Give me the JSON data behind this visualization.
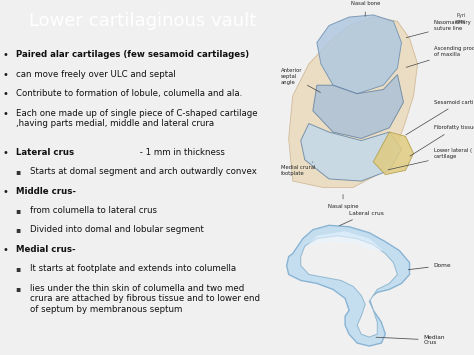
{
  "title": "Lower cartilaginous vault",
  "title_bg_color": "#2aaabf",
  "title_text_color": "#ffffff",
  "bg_color": "#f0f0f0",
  "text_color": "#111111",
  "bullet_items": [
    {
      "level": 0,
      "bold_part": "Paired alar cartilages (few sesamoid cartilages)",
      "normal_part": ""
    },
    {
      "level": 0,
      "bold_part": "",
      "normal_part": "can move freely over ULC and septal"
    },
    {
      "level": 0,
      "bold_part": "",
      "normal_part": "Contribute to formation of lobule, columella and ala."
    },
    {
      "level": 0,
      "bold_part": "",
      "normal_part": "Each one made up of single piece of C-shaped cartilage\n,having parts medial, middle and lateral crura"
    },
    {
      "level": 0,
      "bold_part": "Lateral crus",
      "normal_part": " - 1 mm in thickness"
    },
    {
      "level": 1,
      "bold_part": "",
      "normal_part": "Starts at domal segment and arch outwardly convex"
    },
    {
      "level": 0,
      "bold_part": "Middle crus-",
      "normal_part": ""
    },
    {
      "level": 1,
      "bold_part": "",
      "normal_part": "from columella to lateral crus"
    },
    {
      "level": 1,
      "bold_part": "",
      "normal_part": "Divided into domal and lobular segment"
    },
    {
      "level": 0,
      "bold_part": "Medial crus-",
      "normal_part": ""
    },
    {
      "level": 1,
      "bold_part": "",
      "normal_part": "It starts at footplate and extends into columella"
    },
    {
      "level": 1,
      "bold_part": "",
      "normal_part": "lies under the thin skin of columella and two med\ncrura are attached by fibrous tissue and to lower end\nof septum by membranous septum"
    }
  ],
  "figsize": [
    4.74,
    3.55
  ],
  "dpi": 100
}
